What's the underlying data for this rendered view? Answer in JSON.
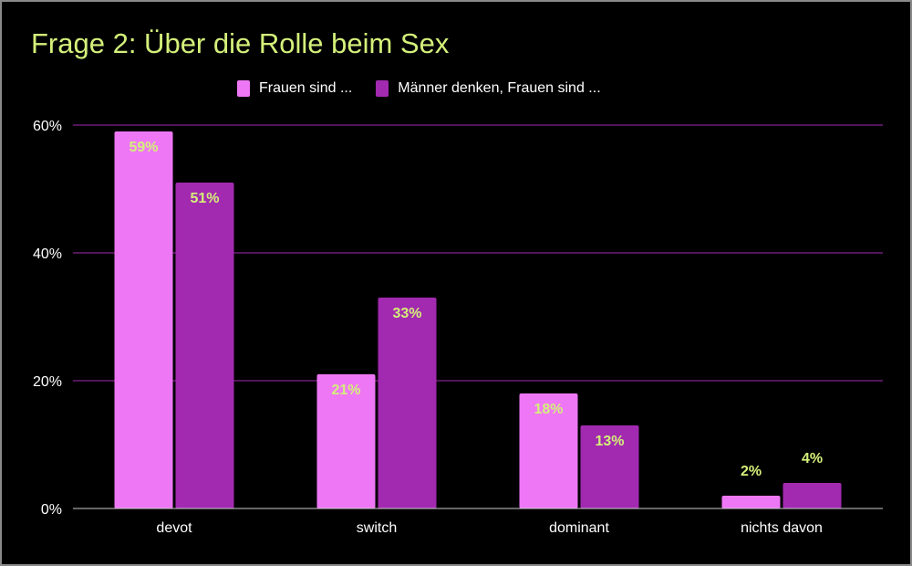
{
  "chart_data": {
    "type": "bar",
    "title": "Frage 2: Über die Rolle beim Sex",
    "categories": [
      "devot",
      "switch",
      "dominant",
      "nichts davon"
    ],
    "series": [
      {
        "name": "Frauen sind ...",
        "values": [
          59,
          21,
          18,
          2
        ],
        "labels": [
          "59%",
          "21%",
          "18%",
          "2%"
        ],
        "color": "#ee77f5"
      },
      {
        "name": "Männer denken, Frauen sind ...",
        "values": [
          51,
          33,
          13,
          4
        ],
        "labels": [
          "51%",
          "33%",
          "13%",
          "4%"
        ],
        "color": "#a22ab0"
      }
    ],
    "ylim": [
      0,
      60
    ],
    "yticks": [
      0,
      20,
      40,
      60
    ],
    "ytick_labels": [
      "0%",
      "20%",
      "40%",
      "60%"
    ],
    "grid": true,
    "gridline_color": "#a22ab0",
    "data_label_color": "#d4f07a",
    "legend_placement": "top",
    "background": "#000000"
  }
}
